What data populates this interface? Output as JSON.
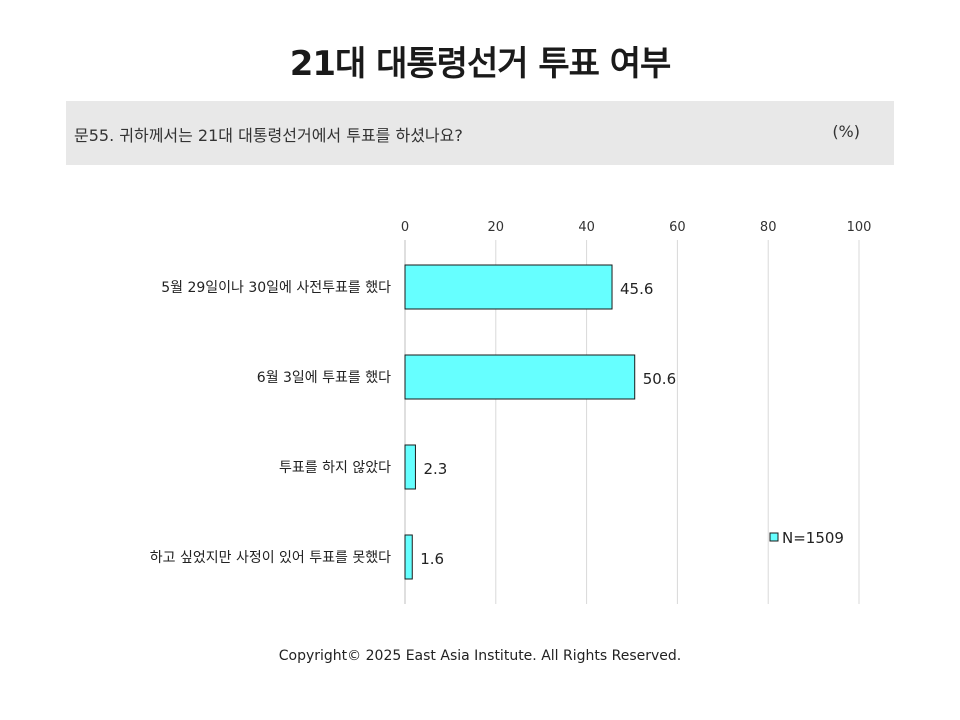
{
  "header": {
    "title": "21대 대통령선거 투표 여부",
    "question": "문55. 귀하께서는 21대 대통령선거에서 투표를 하셨나요?",
    "unit": "(%)"
  },
  "chart_data": {
    "type": "bar",
    "orientation": "horizontal",
    "categories": [
      "5월 29일이나 30일에 사전투표를 했다",
      "6월 3일에 투표를 했다",
      "투표를 하지 않았다",
      "하고 싶었지만 사정이 있어 투표를 못했다"
    ],
    "series": [
      {
        "name": "N=1509",
        "values": [
          45.6,
          50.6,
          2.3,
          1.6
        ]
      }
    ],
    "value_labels": [
      "45.6",
      "50.6",
      "2.3",
      "1.6"
    ],
    "xlim": [
      0,
      100
    ],
    "xticks": [
      0,
      20,
      40,
      60,
      80,
      100
    ],
    "xtick_labels": [
      "0",
      "20",
      "40",
      "60",
      "80",
      "100"
    ],
    "grid": true,
    "legend_position": "bottom-right",
    "bar_color": "#66ffff"
  },
  "footer": {
    "copyright": "Copyright© 2025 East Asia Institute. All Rights Reserved."
  }
}
